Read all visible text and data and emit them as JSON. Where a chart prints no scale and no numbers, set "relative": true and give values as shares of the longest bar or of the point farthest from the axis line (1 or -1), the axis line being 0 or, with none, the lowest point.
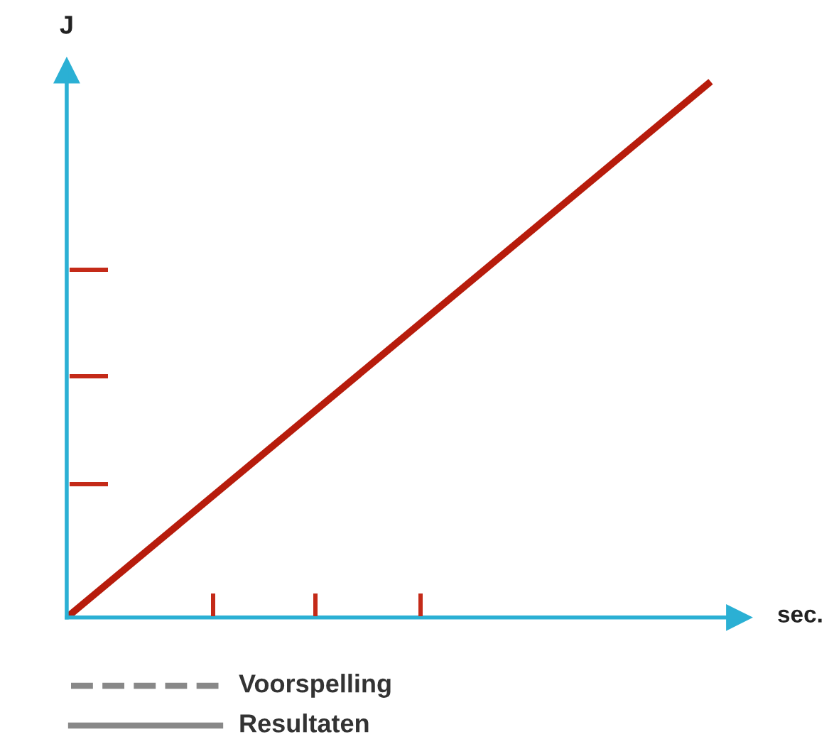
{
  "chart_data": {
    "type": "line",
    "relative": true,
    "ylabel": "J",
    "categories": [
      null,
      null
    ],
    "series": [
      {
        "color": "#b71c0c",
        "values": [
          0,
          1
        ]
      }
    ],
    "annotations": [
      "Voorspelling",
      "Resultaten",
      "sec."
    ],
    "marker": "none",
    "line_style": "solid"
  }
}
